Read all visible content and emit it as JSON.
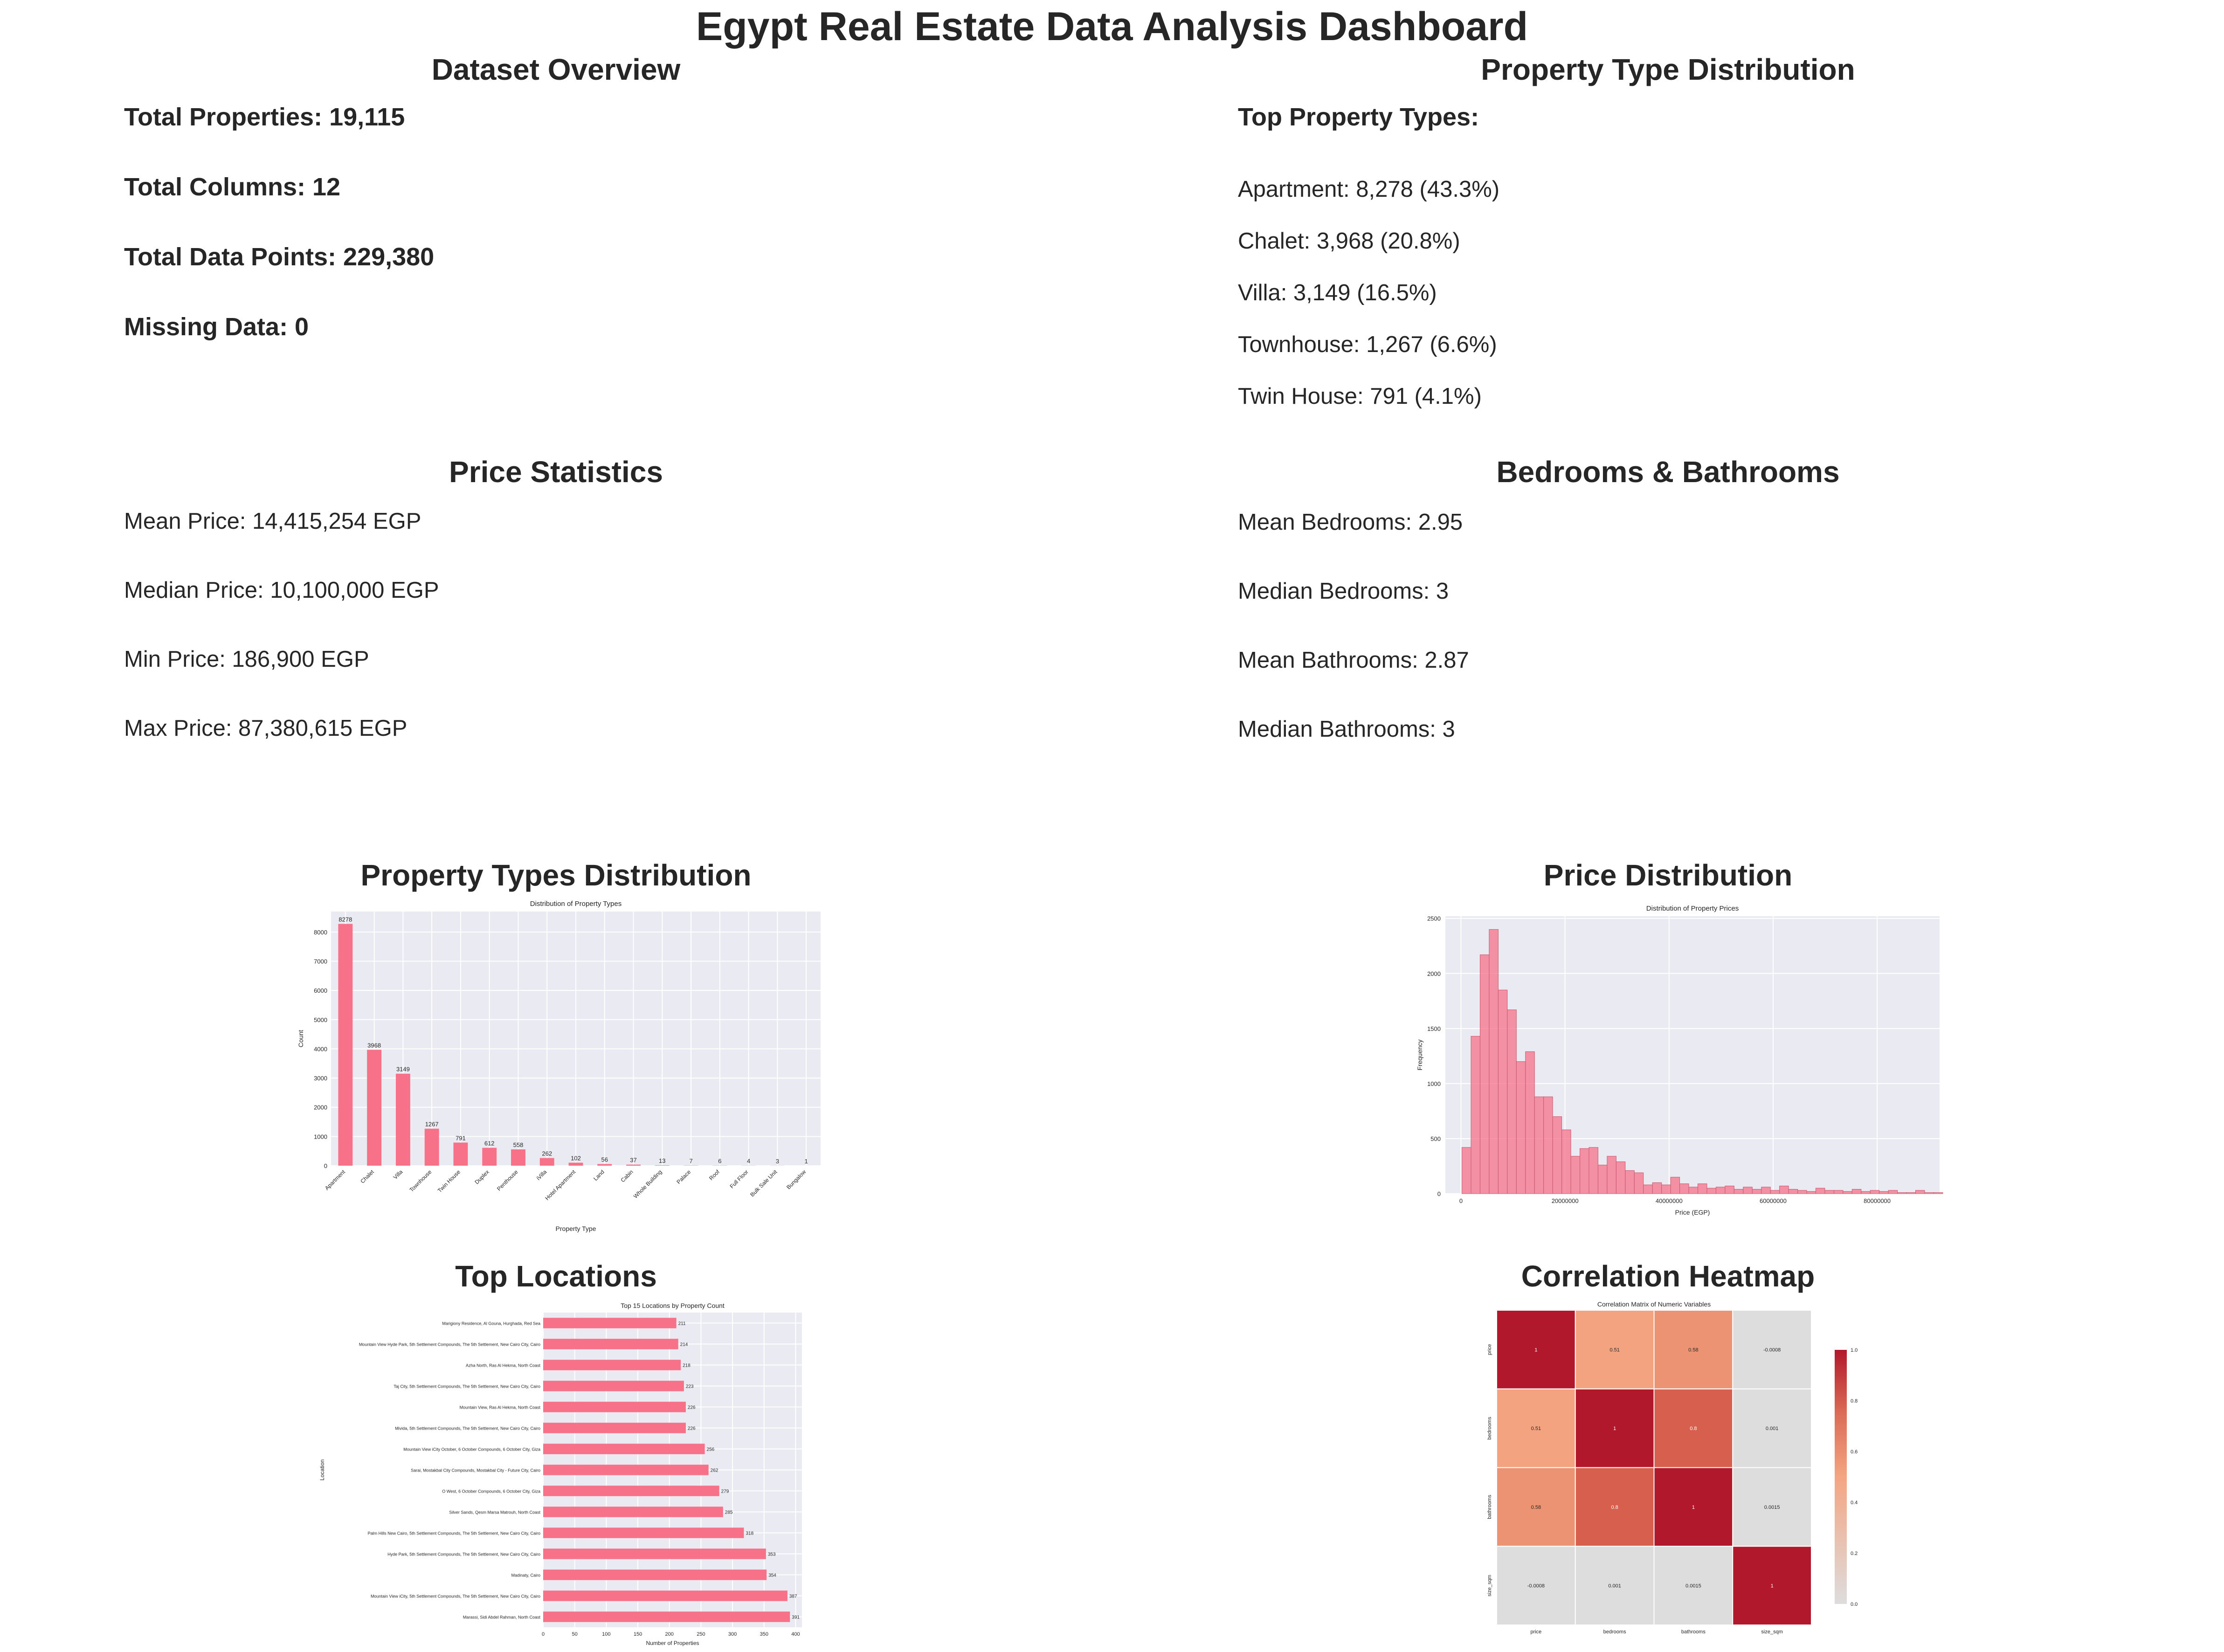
{
  "title": "Egypt Real Estate Data Analysis Dashboard",
  "overview": {
    "heading": "Dataset Overview",
    "lines": [
      "Total Properties: 19,115",
      "Total Columns: 12",
      "Total Data Points: 229,380",
      "Missing Data: 0"
    ]
  },
  "property_type_dist": {
    "heading": "Property Type Distribution",
    "subheading": "Top Property Types:",
    "lines": [
      "Apartment: 8,278 (43.3%)",
      "Chalet: 3,968 (20.8%)",
      "Villa: 3,149 (16.5%)",
      "Townhouse: 1,267 (6.6%)",
      "Twin House: 791 (4.1%)"
    ]
  },
  "price_stats": {
    "heading": "Price Statistics",
    "lines": [
      "Mean Price: 14,415,254 EGP",
      "Median Price: 10,100,000 EGP",
      "Min Price: 186,900 EGP",
      "Max Price: 87,380,615 EGP"
    ]
  },
  "bed_bath": {
    "heading": "Bedrooms & Bathrooms",
    "lines": [
      "Mean Bedrooms: 2.95",
      "Median Bedrooms: 3",
      "Mean Bathrooms: 2.87",
      "Median Bathrooms: 3"
    ]
  },
  "colors": {
    "bar": "#f77189",
    "plot_bg": "#eaeaf2",
    "grid": "#ffffff",
    "text": "#262626"
  },
  "chart_data": [
    {
      "panel_title": "Property Types Distribution",
      "type": "bar",
      "title": "Distribution of Property Types",
      "xlabel": "Property Type",
      "ylabel": "Count",
      "categories": [
        "Apartment",
        "Chalet",
        "Villa",
        "Townhouse",
        "Twin House",
        "Duplex",
        "Penthouse",
        "iVilla",
        "Hotel Apartment",
        "Land",
        "Cabin",
        "Whole Building",
        "Palace",
        "Roof",
        "Full Floor",
        "Bulk Sale Unit",
        "Bungalow"
      ],
      "values": [
        8278,
        3968,
        3149,
        1267,
        791,
        612,
        558,
        262,
        102,
        56,
        37,
        13,
        7,
        6,
        4,
        3,
        1
      ],
      "yticks": [
        0,
        1000,
        2000,
        3000,
        4000,
        5000,
        6000,
        7000,
        8000
      ],
      "ylim": [
        0,
        8700
      ],
      "grid": true
    },
    {
      "panel_title": "Price Distribution",
      "type": "bar",
      "title": "Distribution of Property Prices",
      "xlabel": "Price (EGP)",
      "ylabel": "Frequency",
      "bin_start": 186900,
      "bin_width": 1744000,
      "values": [
        420,
        1430,
        2170,
        2400,
        1850,
        1670,
        1200,
        1290,
        880,
        880,
        700,
        580,
        340,
        410,
        420,
        260,
        340,
        290,
        210,
        190,
        80,
        100,
        80,
        150,
        90,
        60,
        90,
        50,
        60,
        70,
        40,
        60,
        40,
        60,
        30,
        70,
        40,
        30,
        20,
        50,
        30,
        30,
        20,
        40,
        20,
        30,
        20,
        30,
        10,
        10,
        30,
        10,
        10
      ],
      "xticks": [
        0,
        20000000,
        40000000,
        60000000,
        80000000
      ],
      "yticks": [
        0,
        500,
        1000,
        1500,
        2000,
        2500
      ],
      "xlim": [
        -3000000,
        92000000
      ],
      "ylim": [
        0,
        2520
      ],
      "grid": true
    },
    {
      "panel_title": "Top Locations",
      "type": "bar",
      "orientation": "horizontal",
      "title": "Top 15 Locations by Property Count",
      "xlabel": "Number of Properties",
      "ylabel": "Location",
      "categories": [
        "Marigiony Residence, Al Gouna, Hurghada, Red Sea",
        "Mountain View Hyde Park, 5th Settlement Compounds, The 5th Settlement, New Cairo City, Cairo",
        "Azha North, Ras Al Hekma, North Coast",
        "Taj City, 5th Settlement Compounds, The 5th Settlement, New Cairo City, Cairo",
        "Mountain View, Ras Al Hekma, North Coast",
        "Mivida, 5th Settlement Compounds, The 5th Settlement, New Cairo City, Cairo",
        "Mountain View iCity October, 6 October Compounds, 6 October City, Giza",
        "Sarai, Mostakbal City Compounds, Mostakbal City - Future City, Cairo",
        "O West, 6 October Compounds, 6 October City, Giza",
        "Silver Sands, Qesm Marsa Matrouh, North Coast",
        "Palm Hills New Cairo, 5th Settlement Compounds, The 5th Settlement, New Cairo City, Cairo",
        "Hyde Park, 5th Settlement Compounds, The 5th Settlement, New Cairo City, Cairo",
        "Madinaty, Cairo",
        "Mountain View iCity, 5th Settlement Compounds, The 5th Settlement, New Cairo City, Cairo",
        "Marassi, Sidi Abdel Rahman, North Coast"
      ],
      "values": [
        211,
        214,
        218,
        223,
        226,
        226,
        256,
        262,
        279,
        285,
        318,
        353,
        354,
        387,
        391
      ],
      "xticks": [
        0,
        50,
        100,
        150,
        200,
        250,
        300,
        350,
        400
      ],
      "xlim": [
        0,
        410
      ],
      "grid": true
    },
    {
      "panel_title": "Correlation Heatmap",
      "type": "heatmap",
      "title": "Correlation Matrix of Numeric Variables",
      "labels": [
        "price",
        "bedrooms",
        "bathrooms",
        "size_sqm"
      ],
      "matrix": [
        [
          1,
          0.51,
          0.58,
          -0.0008
        ],
        [
          0.51,
          1,
          0.8,
          0.001
        ],
        [
          0.58,
          0.8,
          1,
          0.0015
        ],
        [
          -0.0008,
          0.001,
          0.0015,
          1
        ]
      ],
      "annotations": [
        [
          "1",
          "0.51",
          "0.58",
          "-0.0008"
        ],
        [
          "0.51",
          "1",
          "0.8",
          "0.001"
        ],
        [
          "0.58",
          "0.8",
          "1",
          "0.0015"
        ],
        [
          "-0.0008",
          "0.001",
          "0.0015",
          "1"
        ]
      ],
      "colorbar_ticks": [
        "0.0",
        "0.2",
        "0.4",
        "0.6",
        "0.8",
        "1.0"
      ],
      "colormap": "coolwarm-centered"
    }
  ]
}
